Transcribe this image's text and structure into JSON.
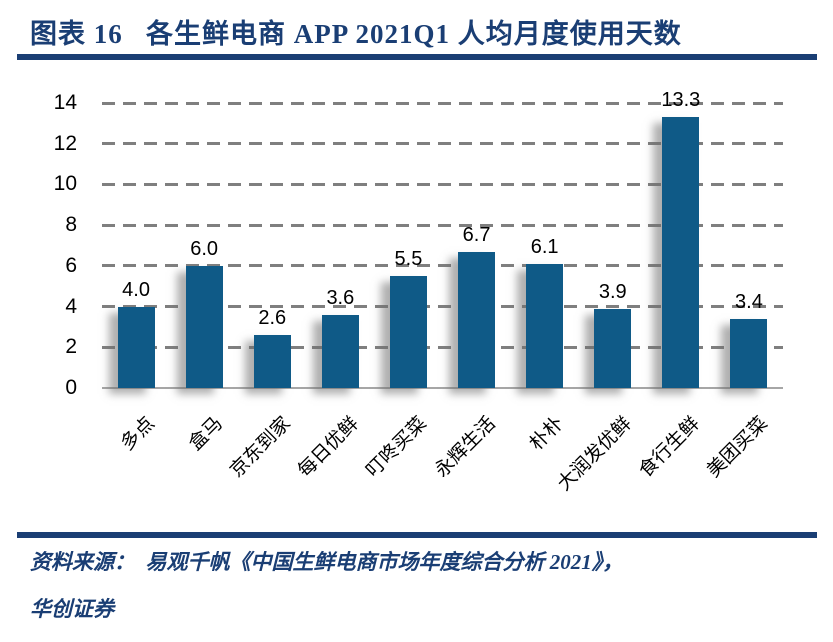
{
  "header": {
    "caption": "图表 16   各生鲜电商 APP 2021Q1 人均月度使用天数"
  },
  "footer": {
    "source_line1": "资料来源：  易观千帆《中国生鲜电商市场年度综合分析 2021》，",
    "source_line2": "华创证券"
  },
  "colors": {
    "navy_accent": "#1a3e74",
    "bar_fill": "#0f5a87",
    "gridline": "#7f7f7f",
    "axis_line": "#a6a6a6",
    "label_text": "#000000"
  },
  "chart_data": {
    "type": "bar",
    "title": "各生鲜电商 APP 2021Q1 人均月度使用天数",
    "categories": [
      "多点",
      "盒马",
      "京东到家",
      "每日优鲜",
      "叮咚买菜",
      "永辉生活",
      "朴朴",
      "大润发优鲜",
      "食行生鲜",
      "美团买菜"
    ],
    "values": [
      4.0,
      6.0,
      2.6,
      3.6,
      5.5,
      6.7,
      6.1,
      3.9,
      13.3,
      3.4
    ],
    "value_labels": [
      "4.0",
      "6.0",
      "2.6",
      "3.6",
      "5.5",
      "6.7",
      "6.1",
      "3.9",
      "13.3",
      "3.4"
    ],
    "xlabel": "",
    "ylabel": "",
    "ylim": [
      0,
      14
    ],
    "yticks": [
      0,
      2,
      4,
      6,
      8,
      10,
      12,
      14
    ],
    "grid": "dashed-horizontal",
    "legend": "none",
    "bar_color": "#0f5a87"
  }
}
